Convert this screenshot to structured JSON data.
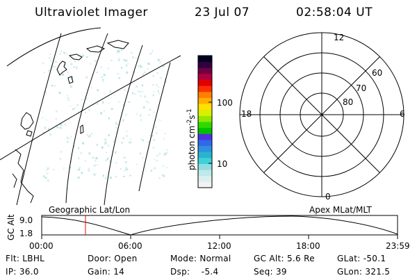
{
  "header": {
    "instrument": "Ultraviolet Imager",
    "date": "23 Jul 07",
    "time": "02:58:04 UT"
  },
  "colorbar": {
    "unit_label": "photon cm",
    "unit_exp1": "-2",
    "unit_s": "s",
    "unit_exp2": "-1",
    "ticks": [
      "100",
      "10"
    ],
    "colors": [
      "#f2f2f2",
      "#dcefef",
      "#bfe9ea",
      "#8fdde0",
      "#40d0d8",
      "#28b4d0",
      "#3090e0",
      "#2f68e8",
      "#5030e0",
      "#00c000",
      "#30d800",
      "#90e800",
      "#d8f000",
      "#ffe000",
      "#ffb000",
      "#ff8000",
      "#ff3000",
      "#e00000",
      "#b00040",
      "#700040",
      "#300040",
      "#000020"
    ]
  },
  "map_panel": {
    "label": "Geographic Lat/Lon"
  },
  "polar_panel": {
    "label": "Apex MLat/MLT",
    "mlt_labels": {
      "top": "12",
      "left": "18",
      "right": "6",
      "bottom": "0"
    },
    "lat_labels": [
      "60",
      "70",
      "80"
    ]
  },
  "altitude_plot": {
    "ylabel": "GC Alt",
    "yticks": [
      "9.0",
      "1.8"
    ],
    "xticks": [
      "00:00",
      "06:00",
      "12:00",
      "18:00",
      "23:59"
    ],
    "current_time_marker": "02:58",
    "line_color": "#000000",
    "marker_color": "#ff0000"
  },
  "info": {
    "flt": "Flt: LBHL",
    "door": "Door: Open",
    "mode": "Mode: Normal",
    "gc_alt": "GC Alt: 5.6 Re",
    "glat": "GLat: -50.1",
    "ip": "IP: 36.0",
    "gain": "Gain: 14",
    "dsp": "Dsp:    -5.4",
    "seq": "Seq: 39",
    "glon": "GLon: 321.5"
  }
}
